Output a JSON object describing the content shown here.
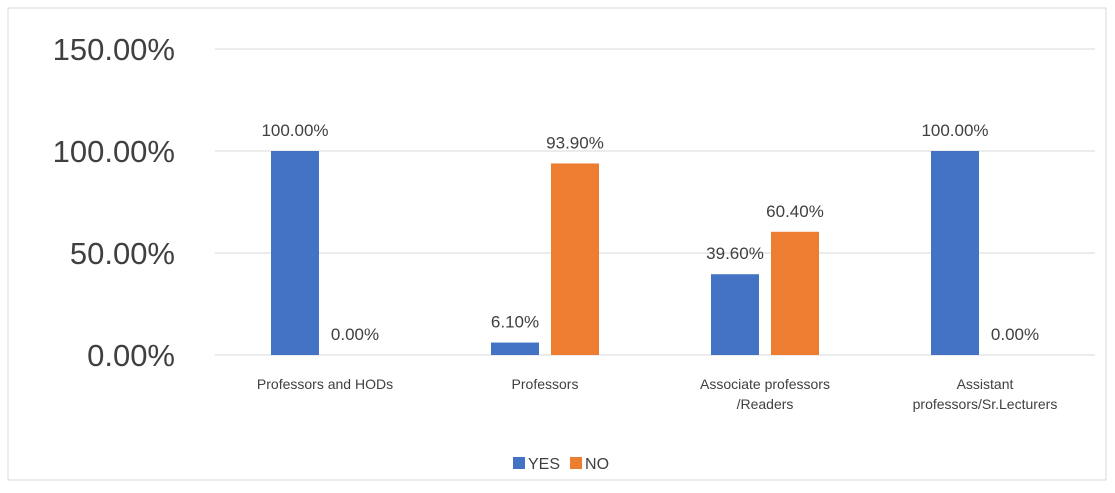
{
  "chart_data": {
    "type": "bar",
    "categories": [
      "Professors and HODs",
      "Professors",
      "Associate professors /Readers",
      "Assistant professors/Sr.Lecturers"
    ],
    "series": [
      {
        "name": "YES",
        "color": "#4472c4",
        "values": [
          100,
          6.1,
          39.6,
          100
        ],
        "value_labels": [
          "100.00%",
          "6.10%",
          "39.60%",
          "100.00%"
        ]
      },
      {
        "name": "NO",
        "color": "#ed7d31",
        "values": [
          0,
          93.9,
          60.4,
          0
        ],
        "value_labels": [
          "0.00%",
          "93.90%",
          "60.40%",
          "0.00%"
        ]
      }
    ],
    "ylim": [
      0,
      150
    ],
    "yticks": [
      {
        "value": 0,
        "label": "0.00%"
      },
      {
        "value": 50,
        "label": "50.00%"
      },
      {
        "value": 100,
        "label": "100.00%"
      },
      {
        "value": 150,
        "label": "150.00%"
      }
    ],
    "grid": true,
    "legend": "bottom"
  }
}
